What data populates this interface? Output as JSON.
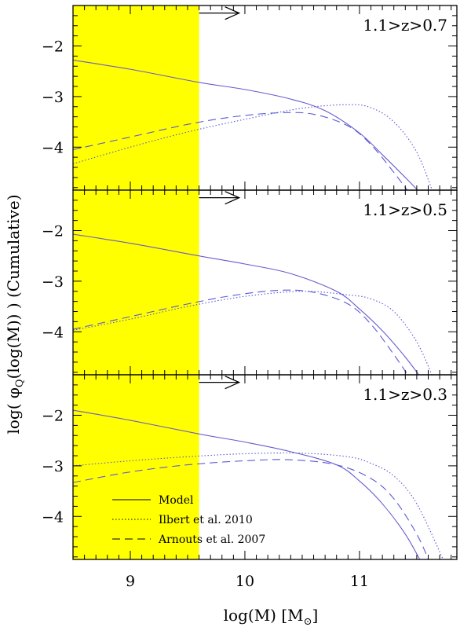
{
  "chart_data": {
    "type": "line",
    "xlabel": "log(M) [M",
    "xlabel_sub": "⊙",
    "ylabel": "log( φ",
    "ylabel_sub": "Q",
    "ylabel_rest": "(log(M)) ) (Cumulative)",
    "xlim": [
      8.5,
      11.85
    ],
    "x_ticks": [
      9,
      10,
      11
    ],
    "x_tick_labels": [
      "9",
      "10",
      "11"
    ],
    "y_tick_labels_all": [
      "−2",
      "−3",
      "−4"
    ],
    "highlight_band": {
      "x_from": 8.5,
      "x_to": 9.6,
      "color": "#ffff00"
    },
    "colors": {
      "model": "#6a5acd",
      "ilbert": "#5a5ad6",
      "arnouts": "#5a5ad6",
      "arrow": "#000000"
    },
    "legend": {
      "placement": "lower-left",
      "entries": [
        {
          "label": "Model",
          "style": "solid"
        },
        {
          "label": "Ilbert et al. 2010",
          "style": "dotted"
        },
        {
          "label": "Arnouts et al. 2007",
          "style": "dashed"
        }
      ]
    },
    "panels": [
      {
        "label": "1.1>z>0.7",
        "ylim": [
          -4.85,
          -1.2
        ],
        "y_ticks": [
          -2,
          -3,
          -4
        ],
        "arrow": {
          "x_from": 9.6,
          "x_to": 9.95,
          "y": -1.35
        },
        "series": [
          {
            "name": "Model",
            "style": "solid",
            "x": [
              8.5,
              9.0,
              9.6,
              10.0,
              10.4,
              10.7,
              11.0,
              11.2,
              11.4,
              11.55
            ],
            "y": [
              -2.28,
              -2.46,
              -2.72,
              -2.86,
              -3.05,
              -3.28,
              -3.72,
              -4.15,
              -4.6,
              -4.95
            ]
          },
          {
            "name": "Ilbert et al. 2010",
            "style": "dotted",
            "x": [
              8.5,
              9.0,
              9.5,
              10.0,
              10.5,
              10.9,
              11.1,
              11.3,
              11.5,
              11.65
            ],
            "y": [
              -4.33,
              -4.0,
              -3.7,
              -3.45,
              -3.23,
              -3.16,
              -3.22,
              -3.5,
              -4.1,
              -4.95
            ]
          },
          {
            "name": "Arnouts et al. 2007",
            "style": "dashed",
            "x": [
              8.5,
              9.0,
              9.5,
              9.9,
              10.3,
              10.6,
              10.9,
              11.1,
              11.3,
              11.45
            ],
            "y": [
              -4.05,
              -3.8,
              -3.55,
              -3.4,
              -3.32,
              -3.35,
              -3.58,
              -3.95,
              -4.5,
              -4.95
            ]
          }
        ]
      },
      {
        "label": "1.1>z>0.5",
        "ylim": [
          -4.85,
          -1.2
        ],
        "y_ticks": [
          -2,
          -3,
          -4
        ],
        "arrow": {
          "x_from": 9.6,
          "x_to": 9.95,
          "y": -1.35
        },
        "series": [
          {
            "name": "Model",
            "style": "solid",
            "x": [
              8.5,
              9.0,
              9.6,
              10.0,
              10.4,
              10.8,
              11.0,
              11.2,
              11.4,
              11.55
            ],
            "y": [
              -2.07,
              -2.25,
              -2.5,
              -2.66,
              -2.85,
              -3.2,
              -3.55,
              -3.98,
              -4.5,
              -4.95
            ]
          },
          {
            "name": "Ilbert et al. 2010",
            "style": "dotted",
            "x": [
              8.5,
              9.0,
              9.5,
              10.0,
              10.5,
              10.9,
              11.1,
              11.3,
              11.5,
              11.65
            ],
            "y": [
              -3.97,
              -3.75,
              -3.5,
              -3.3,
              -3.2,
              -3.27,
              -3.35,
              -3.6,
              -4.2,
              -4.95
            ]
          },
          {
            "name": "Arnouts et al. 2007",
            "style": "dashed",
            "x": [
              8.5,
              9.0,
              9.5,
              9.9,
              10.3,
              10.6,
              10.9,
              11.1,
              11.3,
              11.45
            ],
            "y": [
              -3.95,
              -3.7,
              -3.45,
              -3.28,
              -3.18,
              -3.22,
              -3.45,
              -3.85,
              -4.45,
              -4.95
            ]
          }
        ]
      },
      {
        "label": "1.1>z>0.3",
        "ylim": [
          -4.85,
          -1.2
        ],
        "y_ticks": [
          -2,
          -3,
          -4
        ],
        "arrow": {
          "x_from": 9.6,
          "x_to": 9.95,
          "y": -1.35
        },
        "series": [
          {
            "name": "Model",
            "style": "solid",
            "x": [
              8.5,
              9.0,
              9.6,
              10.0,
              10.4,
              10.8,
              11.0,
              11.2,
              11.4,
              11.55
            ],
            "y": [
              -1.9,
              -2.1,
              -2.37,
              -2.53,
              -2.72,
              -2.98,
              -3.3,
              -3.75,
              -4.35,
              -4.95
            ]
          },
          {
            "name": "Ilbert et al. 2010",
            "style": "dotted",
            "x": [
              8.5,
              9.0,
              9.5,
              10.0,
              10.5,
              10.9,
              11.1,
              11.3,
              11.5,
              11.75
            ],
            "y": [
              -3.0,
              -2.9,
              -2.82,
              -2.76,
              -2.75,
              -2.82,
              -2.95,
              -3.2,
              -3.75,
              -4.95
            ]
          },
          {
            "name": "Arnouts et al. 2007",
            "style": "dashed",
            "x": [
              8.5,
              9.0,
              9.5,
              10.0,
              10.4,
              10.8,
              11.1,
              11.3,
              11.5,
              11.62
            ],
            "y": [
              -3.33,
              -3.12,
              -2.98,
              -2.9,
              -2.88,
              -2.98,
              -3.25,
              -3.65,
              -4.35,
              -4.95
            ]
          }
        ]
      }
    ]
  }
}
